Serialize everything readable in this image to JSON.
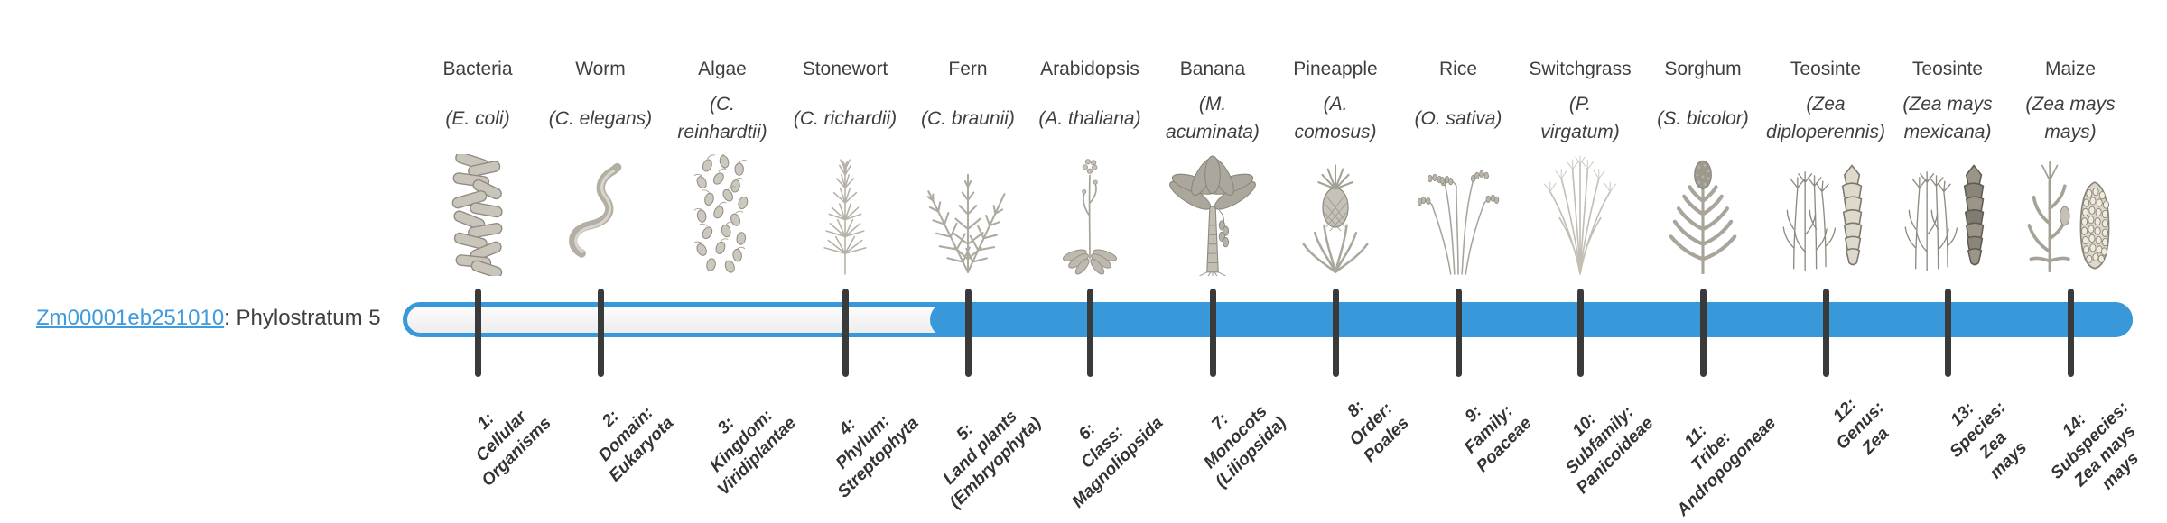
{
  "gene": {
    "id": "Zm00001eb251010",
    "label_suffix": ": Phylostratum 5",
    "phylostratum": 5
  },
  "timeline": {
    "strata_count": 14,
    "fill_start_stratum": 5,
    "bar_color": "#3898d9",
    "track_fill": "#f3f3f3",
    "tick_color": "#3a3a3a",
    "link_color": "#3f9bdc"
  },
  "organisms": [
    {
      "common": "Bacteria",
      "scientific": "(E. coli)",
      "icon": "bacteria-icon",
      "stratum_label": "1:\nCellular\nOrganisms"
    },
    {
      "common": "Worm",
      "scientific": "(C. elegans)",
      "icon": "worm-icon",
      "stratum_label": "2:\nDomain:\nEukaryota"
    },
    {
      "common": "Algae",
      "scientific": "(C.\nreinhardtii)",
      "icon": "algae-icon",
      "stratum_label": "3:\nKingdom:\nViridiplantae"
    },
    {
      "common": "Stonewort",
      "scientific": "(C. richardii)",
      "icon": "stonewort-icon",
      "stratum_label": "4:\nPhylum:\nStreptophyta"
    },
    {
      "common": "Fern",
      "scientific": "(C. braunii)",
      "icon": "fern-icon",
      "stratum_label": "5:\nLand plants\n(Embryophyta)"
    },
    {
      "common": "Arabidopsis",
      "scientific": "(A. thaliana)",
      "icon": "arabidopsis-icon",
      "stratum_label": "6:\nClass:\nMagnoliopsida"
    },
    {
      "common": "Banana",
      "scientific": "(M.\nacuminata)",
      "icon": "banana-icon",
      "stratum_label": "7:\nMonocots\n(Liliopsida)"
    },
    {
      "common": "Pineapple",
      "scientific": "(A.\ncomosus)",
      "icon": "pineapple-icon",
      "stratum_label": "8:\nOrder:\nPoales"
    },
    {
      "common": "Rice",
      "scientific": "(O. sativa)",
      "icon": "rice-icon",
      "stratum_label": "9:\nFamily:\nPoaceae"
    },
    {
      "common": "Switchgrass",
      "scientific": "(P.\nvirgatum)",
      "icon": "switchgrass-icon",
      "stratum_label": "10:\nSubfamily:\nPanicoideae"
    },
    {
      "common": "Sorghum",
      "scientific": "(S. bicolor)",
      "icon": "sorghum-icon",
      "stratum_label": "11:\nTribe:\nAndropogoneae"
    },
    {
      "common": "Teosinte",
      "scientific": "(Zea\ndiploperennis)",
      "icon": "teosinte-diplo-icon",
      "stratum_label": "12:\nGenus:\nZea"
    },
    {
      "common": "Teosinte",
      "scientific": "(Zea mays\nmexicana)",
      "icon": "teosinte-mex-icon",
      "stratum_label": "13:\nSpecies:\nZea\nmays"
    },
    {
      "common": "Maize",
      "scientific": "(Zea mays\nmays)",
      "icon": "maize-icon",
      "stratum_label": "14:\nSubspecies:\nZea mays\nmays"
    }
  ]
}
